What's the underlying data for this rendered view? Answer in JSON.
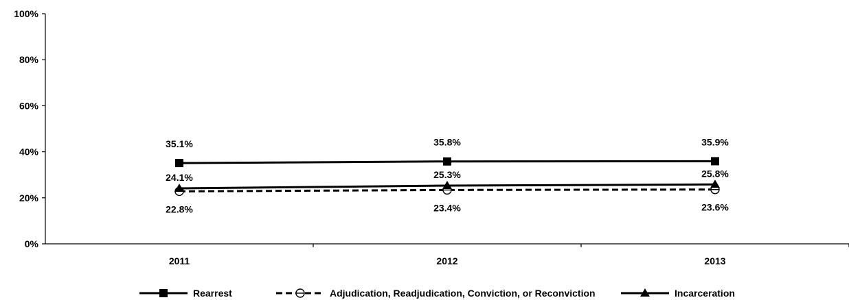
{
  "chart_data": {
    "type": "line",
    "categories": [
      "2011",
      "2012",
      "2013"
    ],
    "ylim": [
      0,
      100
    ],
    "yticks": [
      0,
      20,
      40,
      60,
      80,
      100
    ],
    "ytick_labels": [
      "0%",
      "20%",
      "40%",
      "60%",
      "80%",
      "100%"
    ],
    "grid": false,
    "legend_position": "bottom",
    "series": [
      {
        "name": "Rearrest",
        "values": [
          35.1,
          35.8,
          35.9
        ],
        "labels": [
          "35.1%",
          "35.8%",
          "35.9%"
        ],
        "marker": "square",
        "line": "solid",
        "color": "#000000"
      },
      {
        "name": "Adjudication, Readjudication, Conviction, or Reconviction",
        "values": [
          22.8,
          23.4,
          23.6
        ],
        "labels": [
          "22.8%",
          "23.4%",
          "23.6%"
        ],
        "marker": "circle-open",
        "line": "dashed",
        "color": "#000000"
      },
      {
        "name": "Incarceration",
        "values": [
          24.1,
          25.3,
          25.8
        ],
        "labels": [
          "24.1%",
          "25.3%",
          "25.8%"
        ],
        "marker": "triangle",
        "line": "solid",
        "color": "#000000"
      }
    ]
  }
}
